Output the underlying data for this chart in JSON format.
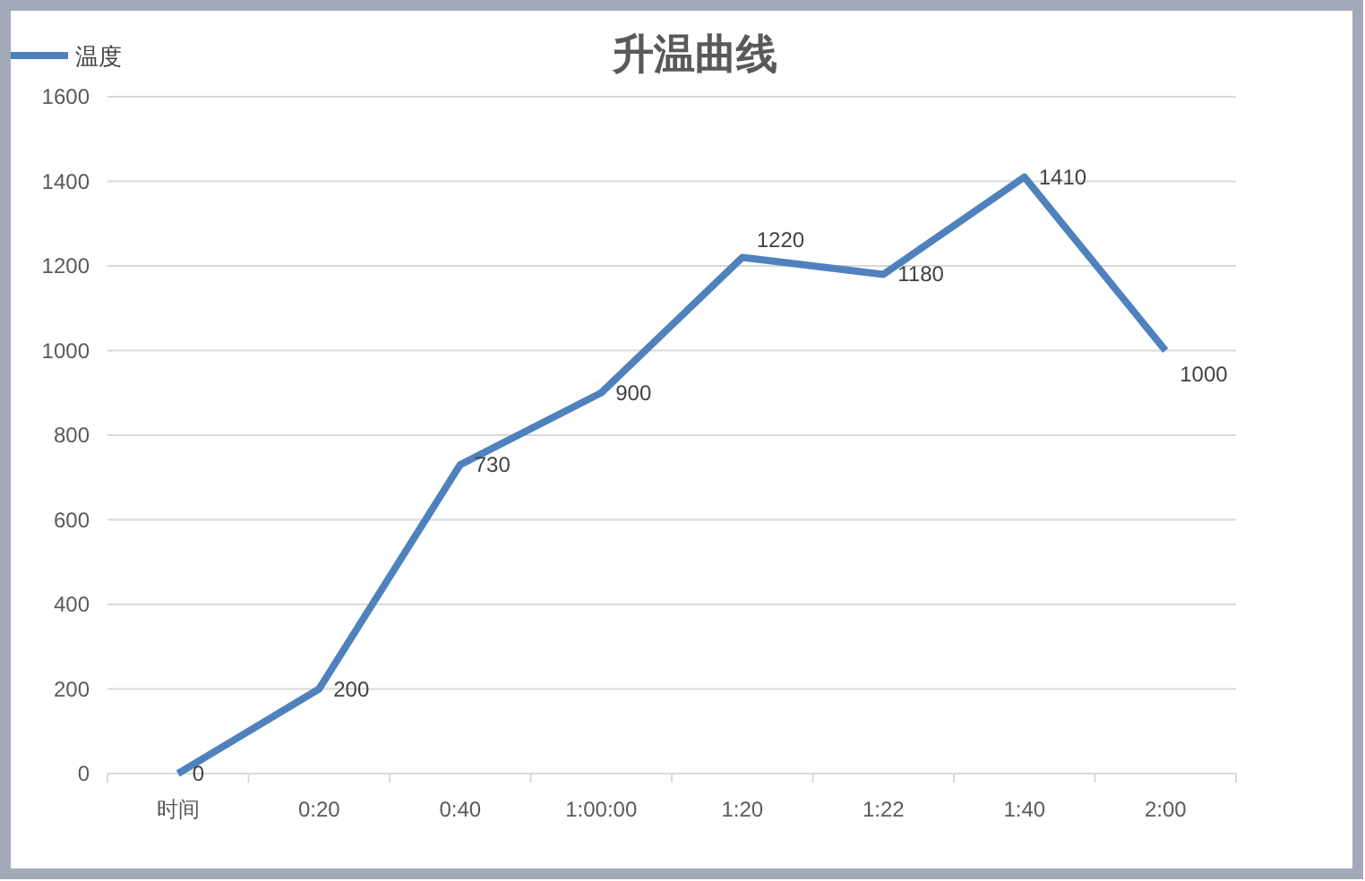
{
  "chart_data": {
    "type": "line",
    "title": "升温曲线",
    "categories": [
      "时间",
      "0:20",
      "0:40",
      "1:00:00",
      "1:20",
      "1:22",
      "1:40",
      "2:00"
    ],
    "series": [
      {
        "name": "温度",
        "color": "#4f81bd",
        "values": [
          0,
          200,
          730,
          900,
          1220,
          1180,
          1410,
          1000
        ]
      }
    ],
    "ylim": [
      0,
      1600
    ],
    "yticks": [
      0,
      200,
      400,
      600,
      800,
      1000,
      1200,
      1400,
      1600
    ],
    "grid": "y",
    "legend": "top left",
    "data_labels": true,
    "line_style": "solid"
  }
}
